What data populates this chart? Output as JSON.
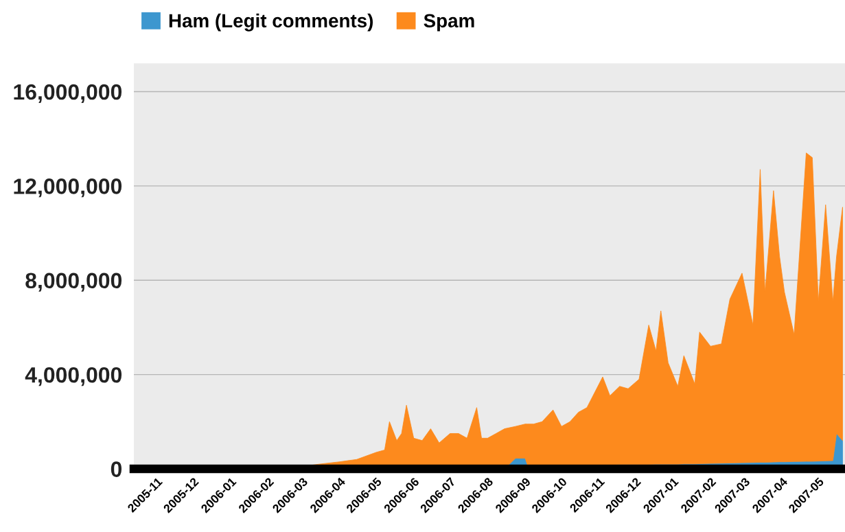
{
  "chart_data": {
    "type": "area",
    "stacked": true,
    "x": [
      "2005-10-15",
      "2005-11-01",
      "2005-12-01",
      "2006-01-01",
      "2006-02-01",
      "2006-03-01",
      "2006-03-15",
      "2006-04-01",
      "2006-04-15",
      "2006-05-01",
      "2006-05-08",
      "2006-05-12",
      "2006-05-18",
      "2006-05-22",
      "2006-05-26",
      "2006-06-01",
      "2006-06-08",
      "2006-06-15",
      "2006-06-22",
      "2006-07-01",
      "2006-07-08",
      "2006-07-15",
      "2006-07-23",
      "2006-07-27",
      "2006-08-01",
      "2006-08-08",
      "2006-08-15",
      "2006-08-24",
      "2006-09-01",
      "2006-09-03",
      "2006-09-08",
      "2006-09-15",
      "2006-09-24",
      "2006-10-01",
      "2006-10-08",
      "2006-10-15",
      "2006-10-22",
      "2006-11-04",
      "2006-11-10",
      "2006-11-18",
      "2006-11-25",
      "2006-12-04",
      "2006-12-12",
      "2006-12-18",
      "2006-12-22",
      "2006-12-28",
      "2007-01-05",
      "2007-01-10",
      "2007-01-19",
      "2007-01-23",
      "2007-02-01",
      "2007-02-10",
      "2007-02-17",
      "2007-02-27",
      "2007-03-08",
      "2007-03-14",
      "2007-03-18",
      "2007-03-25",
      "2007-03-30",
      "2007-04-03",
      "2007-04-11",
      "2007-04-21",
      "2007-04-26",
      "2007-05-01",
      "2007-05-07",
      "2007-05-13",
      "2007-05-16",
      "2007-05-21"
    ],
    "series": [
      {
        "name": "Ham (Legit comments)",
        "color": "#3d97cf",
        "values": [
          0,
          0,
          0,
          0,
          0,
          0,
          0,
          0,
          0,
          0,
          0,
          0,
          0,
          0,
          0,
          0,
          0,
          0,
          0,
          0,
          0,
          0,
          0,
          0,
          0,
          0,
          0,
          450000,
          450000,
          150000,
          150000,
          150000,
          150000,
          150000,
          150000,
          160000,
          160000,
          170000,
          170000,
          180000,
          180000,
          190000,
          190000,
          200000,
          200000,
          200000,
          200000,
          210000,
          210000,
          220000,
          230000,
          240000,
          250000,
          260000,
          270000,
          280000,
          280000,
          290000,
          300000,
          300000,
          310000,
          320000,
          320000,
          330000,
          340000,
          350000,
          1500000,
          1200000
        ]
      },
      {
        "name": "Spam",
        "color": "#fd8a1d",
        "values": [
          0,
          20000,
          30000,
          100000,
          100000,
          100000,
          200000,
          300000,
          400000,
          700000,
          800000,
          2000000,
          1200000,
          1500000,
          2700000,
          1300000,
          1200000,
          1700000,
          1100000,
          1500000,
          1500000,
          1300000,
          2600000,
          1300000,
          1300000,
          1500000,
          1700000,
          1350000,
          1450000,
          1750000,
          1750000,
          1850000,
          2350000,
          1650000,
          1850000,
          2240000,
          2440000,
          3730000,
          2930000,
          3320000,
          3220000,
          3610000,
          5910000,
          4800000,
          6500000,
          4300000,
          3300000,
          4590000,
          3390000,
          5580000,
          4970000,
          5060000,
          6950000,
          8040000,
          5830000,
          12420000,
          7220000,
          11510000,
          8700000,
          7200000,
          5390000,
          13080000,
          12880000,
          6770000,
          10860000,
          6750000,
          7500000,
          9900000
        ]
      }
    ],
    "xlim": [
      "2005-10-13",
      "2007-05-23"
    ],
    "xticks": [
      {
        "value": "2005-11-01",
        "label": "2005-11"
      },
      {
        "value": "2005-12-01",
        "label": "2005-12"
      },
      {
        "value": "2006-01-01",
        "label": "2006-01"
      },
      {
        "value": "2006-02-01",
        "label": "2006-02"
      },
      {
        "value": "2006-03-01",
        "label": "2006-03"
      },
      {
        "value": "2006-04-01",
        "label": "2006-04"
      },
      {
        "value": "2006-05-01",
        "label": "2006-05"
      },
      {
        "value": "2006-06-01",
        "label": "2006-06"
      },
      {
        "value": "2006-07-01",
        "label": "2006-07"
      },
      {
        "value": "2006-08-01",
        "label": "2006-08"
      },
      {
        "value": "2006-09-01",
        "label": "2006-09"
      },
      {
        "value": "2006-10-01",
        "label": "2006-10"
      },
      {
        "value": "2006-11-01",
        "label": "2006-11"
      },
      {
        "value": "2006-12-01",
        "label": "2006-12"
      },
      {
        "value": "2007-01-01",
        "label": "2007-01"
      },
      {
        "value": "2007-02-01",
        "label": "2007-02"
      },
      {
        "value": "2007-03-01",
        "label": "2007-03"
      },
      {
        "value": "2007-04-01",
        "label": "2007-04"
      },
      {
        "value": "2007-05-01",
        "label": "2007-05"
      }
    ],
    "ylim": [
      0,
      17200000
    ],
    "yticks": [
      0,
      {
        "value": 4000000,
        "label": "4,000,000"
      },
      {
        "value": 8000000,
        "label": "8,000,000"
      },
      {
        "value": 12000000,
        "label": "12,000,000"
      },
      {
        "value": 16000000,
        "label": "16,000,000"
      }
    ],
    "grid": "y",
    "legend": "top left"
  }
}
